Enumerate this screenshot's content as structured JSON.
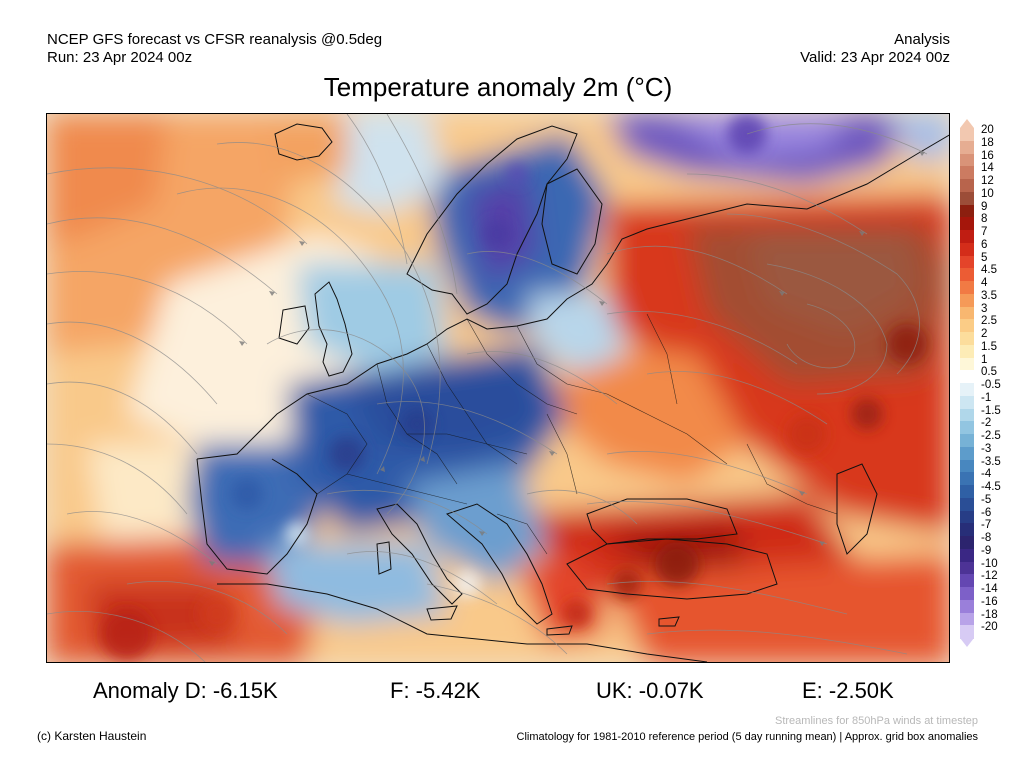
{
  "header": {
    "model_line": "NCEP GFS forecast vs CFSR reanalysis @0.5deg",
    "run_line": "Run: 23 Apr 2024 00z",
    "analysis_label": "Analysis",
    "valid_line": "Valid: 23 Apr 2024 00z"
  },
  "title": "Temperature anomaly 2m (°C)",
  "colorbar": {
    "labels": [
      "20",
      "18",
      "16",
      "14",
      "12",
      "10",
      "9",
      "8",
      "7",
      "6",
      "5",
      "4.5",
      "4",
      "3.5",
      "3",
      "2.5",
      "2",
      "1.5",
      "1",
      "0.5",
      "-0.5",
      "-1",
      "-1.5",
      "-2",
      "-2.5",
      "-3",
      "-3.5",
      "-4",
      "-4.5",
      "-5",
      "-6",
      "-7",
      "-8",
      "-9",
      "-10",
      "-12",
      "-14",
      "-16",
      "-18",
      "-20"
    ],
    "colors": [
      "#f2c8b0",
      "#e6ad92",
      "#d99378",
      "#cc7b61",
      "#b8644c",
      "#9c4d38",
      "#8c1f0f",
      "#a5160b",
      "#c01d12",
      "#d42d1a",
      "#e4442a",
      "#ec5c34",
      "#f17a44",
      "#f59a58",
      "#f8b770",
      "#fbcc86",
      "#fcdd9c",
      "#fdecb6",
      "#fef7d8",
      "#ffffff",
      "#e6f2f8",
      "#cde6f2",
      "#b0d7ea",
      "#92c5e1",
      "#77b2d6",
      "#5d9ccb",
      "#4887bf",
      "#3a73b3",
      "#2f60a5",
      "#2a4e96",
      "#273d86",
      "#272e78",
      "#2c246e",
      "#3a2784",
      "#4d3396",
      "#6447b2",
      "#7d60c8",
      "#9a7fda",
      "#b8a3e8",
      "#d7cbf4"
    ]
  },
  "stats": [
    {
      "label": "Anomaly D: -6.15K"
    },
    {
      "label": "F: -5.42K"
    },
    {
      "label": "UK: -0.07K"
    },
    {
      "label": "E: -2.50K"
    }
  ],
  "footer": {
    "credit": "(c) Karsten Haustein",
    "streamlines_note": "Streamlines for 850hPa winds at timestep",
    "climatology_note": "Climatology for 1981-2010 reference period (5 day running mean) | Approx. grid box anomalies"
  }
}
